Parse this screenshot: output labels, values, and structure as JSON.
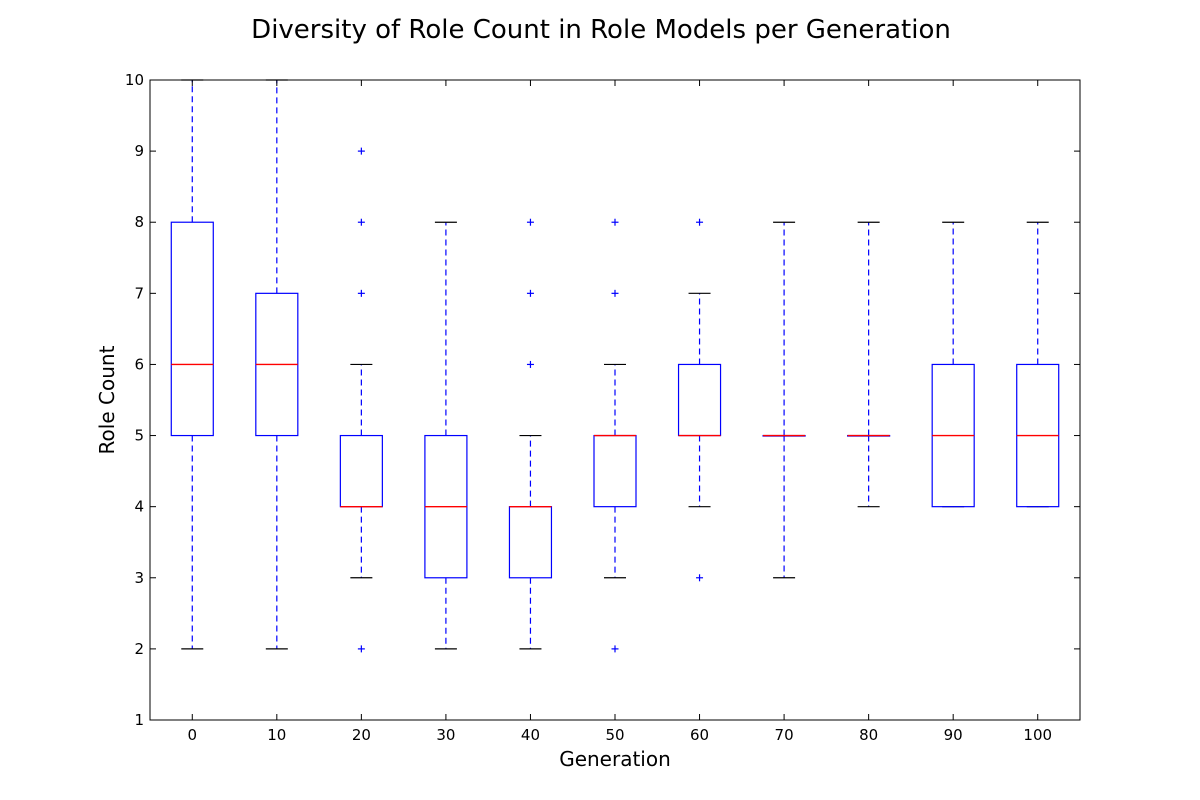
{
  "chart_data": {
    "type": "boxplot",
    "title": "Diversity of Role Count in Role Models per Generation",
    "xlabel": "Generation",
    "ylabel": "Role Count",
    "ylim": [
      1,
      10
    ],
    "yticks": [
      1,
      2,
      3,
      4,
      5,
      6,
      7,
      8,
      9,
      10
    ],
    "grid": false,
    "colors": {
      "box": "#0000ff",
      "median": "#ff0000",
      "whisker": "#0000ff",
      "cap": "#000000",
      "flier": "#0000ff"
    },
    "categories": [
      "0",
      "10",
      "20",
      "30",
      "40",
      "50",
      "60",
      "70",
      "80",
      "90",
      "100"
    ],
    "boxes": [
      {
        "generation": "0",
        "whisker_low": 2,
        "q1": 5,
        "median": 6,
        "q3": 8,
        "whisker_high": 10,
        "fliers": []
      },
      {
        "generation": "10",
        "whisker_low": 2,
        "q1": 5,
        "median": 6,
        "q3": 7,
        "whisker_high": 10,
        "fliers": []
      },
      {
        "generation": "20",
        "whisker_low": 3,
        "q1": 4,
        "median": 4,
        "q3": 5,
        "whisker_high": 6,
        "fliers": [
          2,
          7,
          8,
          9
        ]
      },
      {
        "generation": "30",
        "whisker_low": 2,
        "q1": 3,
        "median": 4,
        "q3": 5,
        "whisker_high": 8,
        "fliers": []
      },
      {
        "generation": "40",
        "whisker_low": 2,
        "q1": 3,
        "median": 4,
        "q3": 4,
        "whisker_high": 5,
        "fliers": [
          6,
          7,
          8
        ]
      },
      {
        "generation": "50",
        "whisker_low": 3,
        "q1": 4,
        "median": 5,
        "q3": 5,
        "whisker_high": 6,
        "fliers": [
          2,
          7,
          8
        ]
      },
      {
        "generation": "60",
        "whisker_low": 4,
        "q1": 5,
        "median": 5,
        "q3": 6,
        "whisker_high": 7,
        "fliers": [
          3,
          8
        ]
      },
      {
        "generation": "70",
        "whisker_low": 3,
        "q1": 5,
        "median": 5,
        "q3": 5,
        "whisker_high": 8,
        "fliers": []
      },
      {
        "generation": "80",
        "whisker_low": 4,
        "q1": 5,
        "median": 5,
        "q3": 5,
        "whisker_high": 8,
        "fliers": []
      },
      {
        "generation": "90",
        "whisker_low": 4,
        "q1": 4,
        "median": 5,
        "q3": 6,
        "whisker_high": 8,
        "fliers": []
      },
      {
        "generation": "100",
        "whisker_low": 4,
        "q1": 4,
        "median": 5,
        "q3": 6,
        "whisker_high": 8,
        "fliers": []
      }
    ]
  }
}
